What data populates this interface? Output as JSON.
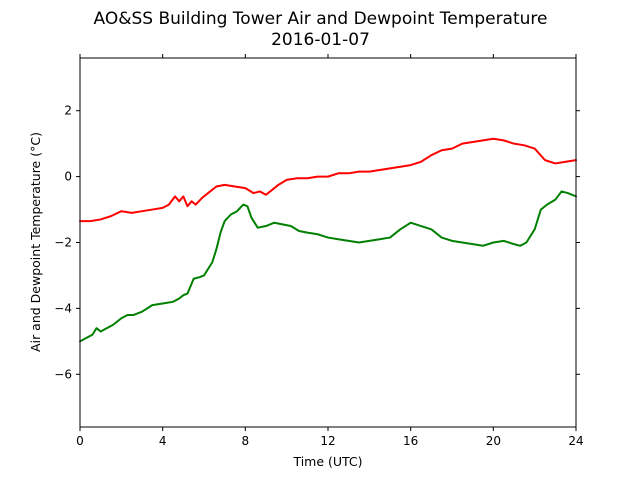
{
  "chart_data": {
    "type": "line",
    "title": "AO&SS Building Tower Air and Dewpoint Temperature",
    "subtitle": "2016-01-07",
    "xlabel": "Time (UTC)",
    "ylabel": "Air and Dewpoint Temperature (°C)",
    "xlim": [
      0,
      24
    ],
    "ylim": [
      -7.6,
      3.6
    ],
    "xticks": [
      0,
      4,
      8,
      12,
      16,
      20,
      24
    ],
    "yticks": [
      -6,
      -4,
      -2,
      0,
      2
    ],
    "grid": false,
    "legend": "none",
    "series": [
      {
        "color": "#ff0000",
        "x": [
          0,
          0.5,
          1.0,
          1.5,
          2.0,
          2.5,
          3.0,
          3.5,
          4.0,
          4.3,
          4.6,
          4.8,
          5.0,
          5.2,
          5.4,
          5.6,
          5.9,
          6.2,
          6.6,
          7.0,
          7.5,
          8.0,
          8.4,
          8.7,
          9.0,
          9.3,
          9.6,
          10.0,
          10.5,
          11.0,
          11.5,
          12.0,
          12.5,
          13.0,
          13.5,
          14.0,
          14.5,
          15.0,
          15.5,
          16.0,
          16.5,
          17.0,
          17.5,
          18.0,
          18.5,
          19.0,
          19.5,
          20.0,
          20.5,
          21.0,
          21.5,
          22.0,
          22.5,
          23.0,
          23.5,
          24.0
        ],
        "y": [
          -1.35,
          -1.35,
          -1.3,
          -1.2,
          -1.05,
          -1.1,
          -1.05,
          -1.0,
          -0.95,
          -0.85,
          -0.6,
          -0.75,
          -0.6,
          -0.9,
          -0.75,
          -0.85,
          -0.65,
          -0.5,
          -0.3,
          -0.25,
          -0.3,
          -0.35,
          -0.5,
          -0.45,
          -0.55,
          -0.4,
          -0.25,
          -0.1,
          -0.05,
          -0.05,
          0.0,
          0.0,
          0.1,
          0.1,
          0.15,
          0.15,
          0.2,
          0.25,
          0.3,
          0.35,
          0.45,
          0.65,
          0.8,
          0.85,
          1.0,
          1.05,
          1.1,
          1.15,
          1.1,
          1.0,
          0.95,
          0.85,
          0.5,
          0.4,
          0.45,
          0.5
        ]
      },
      {
        "color": "#008000",
        "x": [
          0,
          0.3,
          0.6,
          0.8,
          1.0,
          1.3,
          1.6,
          2.0,
          2.3,
          2.6,
          3.0,
          3.5,
          4.0,
          4.5,
          4.8,
          5.0,
          5.2,
          5.5,
          5.8,
          6.0,
          6.2,
          6.4,
          6.6,
          6.8,
          7.0,
          7.3,
          7.6,
          7.9,
          8.1,
          8.3,
          8.6,
          9.0,
          9.4,
          9.8,
          10.2,
          10.6,
          11.0,
          11.5,
          12.0,
          12.5,
          13.0,
          13.5,
          14.0,
          14.5,
          15.0,
          15.5,
          16.0,
          16.5,
          17.0,
          17.5,
          18.0,
          18.5,
          19.0,
          19.5,
          20.0,
          20.5,
          21.0,
          21.3,
          21.6,
          22.0,
          22.3,
          22.6,
          23.0,
          23.3,
          23.6,
          24.0
        ],
        "y": [
          -5.0,
          -4.9,
          -4.8,
          -4.6,
          -4.7,
          -4.6,
          -4.5,
          -4.3,
          -4.2,
          -4.2,
          -4.1,
          -3.9,
          -3.85,
          -3.8,
          -3.7,
          -3.6,
          -3.55,
          -3.1,
          -3.05,
          -3.0,
          -2.8,
          -2.6,
          -2.2,
          -1.7,
          -1.35,
          -1.15,
          -1.05,
          -0.85,
          -0.9,
          -1.25,
          -1.55,
          -1.5,
          -1.4,
          -1.45,
          -1.5,
          -1.65,
          -1.7,
          -1.75,
          -1.85,
          -1.9,
          -1.95,
          -2.0,
          -1.95,
          -1.9,
          -1.85,
          -1.6,
          -1.4,
          -1.5,
          -1.6,
          -1.85,
          -1.95,
          -2.0,
          -2.05,
          -2.1,
          -2.0,
          -1.95,
          -2.05,
          -2.1,
          -2.0,
          -1.6,
          -1.0,
          -0.85,
          -0.7,
          -0.45,
          -0.5,
          -0.6
        ]
      }
    ]
  }
}
